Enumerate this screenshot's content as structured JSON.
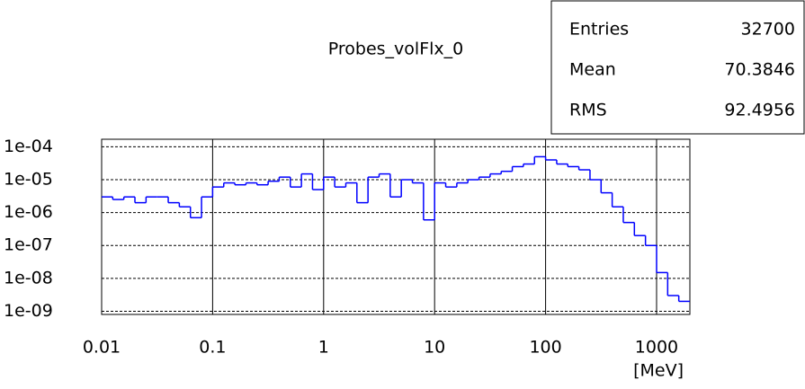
{
  "chart_data": {
    "type": "histogram",
    "title": "Probes_volFlx_0",
    "x_label": "[MeV]",
    "stats": {
      "labels": [
        "Entries",
        "Mean",
        "RMS"
      ],
      "values": [
        32700,
        70.3846,
        92.4956
      ]
    },
    "bins": [
      0.01,
      0.01259,
      0.01585,
      0.01995,
      0.02512,
      0.03162,
      0.03981,
      0.05012,
      0.0631,
      0.07943,
      0.1,
      0.1259,
      0.1585,
      0.1995,
      0.2512,
      0.3162,
      0.3981,
      0.5012,
      0.631,
      0.7943,
      1,
      1.259,
      1.585,
      1.995,
      2.512,
      3.162,
      3.981,
      5.012,
      6.31,
      7.943,
      10,
      12.59,
      15.85,
      19.95,
      25.12,
      31.62,
      39.81,
      50.12,
      63.1,
      79.43,
      100,
      125.9,
      158.5,
      199.5,
      251.2,
      316.2,
      398.1,
      501.2,
      631,
      794.3,
      1000,
      1259,
      1585,
      1995
    ],
    "values": [
      3e-06,
      2.5e-06,
      3e-06,
      2e-06,
      3e-06,
      3e-06,
      2e-06,
      1.5e-06,
      7e-07,
      3e-06,
      6e-06,
      8e-06,
      7e-06,
      8e-06,
      7e-06,
      9e-06,
      1.2e-05,
      6e-06,
      1.5e-05,
      5e-06,
      1.2e-05,
      6e-06,
      8e-06,
      2e-06,
      1.2e-05,
      1.5e-05,
      3e-06,
      1e-05,
      8e-06,
      6e-07,
      8e-06,
      6e-06,
      8e-06,
      1e-05,
      1.2e-05,
      1.5e-05,
      1.8e-05,
      2.5e-05,
      3e-05,
      5e-05,
      4e-05,
      3e-05,
      2.5e-05,
      2e-05,
      1e-05,
      4e-06,
      1.5e-06,
      5e-07,
      2e-07,
      1e-07,
      1.5e-08,
      3e-09,
      2e-09
    ],
    "color": "#0000ff",
    "xlog": true,
    "ylog": true,
    "xlim": [
      0.01,
      1995
    ],
    "xticks": [
      0.01,
      0.1,
      1,
      10,
      100,
      1000
    ],
    "ylim": [
      8e-10,
      0.00017
    ],
    "yticks": [
      {
        "value": 0.0001,
        "label": "1e-04"
      },
      {
        "value": 1e-05,
        "label": "1e-05"
      },
      {
        "value": 1e-06,
        "label": "1e-06"
      },
      {
        "value": 1e-07,
        "label": "1e-07"
      },
      {
        "value": 1e-08,
        "label": "1e-08"
      },
      {
        "value": 1e-09,
        "label": "1e-09"
      }
    ],
    "grid": true
  }
}
